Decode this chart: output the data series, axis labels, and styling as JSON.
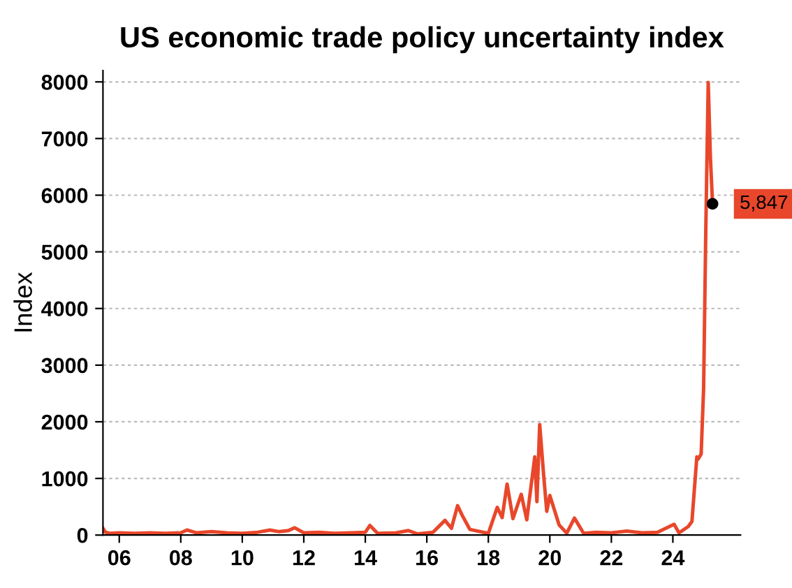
{
  "chart_data": {
    "type": "line",
    "title": "US economic trade policy uncertainty index",
    "ylabel": "Index",
    "x": [
      2005.47,
      2005.55,
      2005.7,
      2006.0,
      2006.5,
      2007.0,
      2007.5,
      2008.0,
      2008.2,
      2008.5,
      2009.0,
      2009.5,
      2010.0,
      2010.5,
      2010.9,
      2011.2,
      2011.5,
      2011.7,
      2012.0,
      2012.5,
      2013.0,
      2013.5,
      2014.0,
      2014.15,
      2014.4,
      2015.0,
      2015.4,
      2015.7,
      2016.2,
      2016.59,
      2016.8,
      2017.0,
      2017.15,
      2017.4,
      2018.0,
      2018.29,
      2018.45,
      2018.61,
      2018.8,
      2019.07,
      2019.25,
      2019.51,
      2019.58,
      2019.67,
      2019.8,
      2019.9,
      2020.0,
      2020.3,
      2020.55,
      2020.8,
      2021.1,
      2021.5,
      2022.0,
      2022.5,
      2023.0,
      2023.5,
      2024.04,
      2024.2,
      2024.5,
      2024.62,
      2024.78,
      2024.82,
      2024.92,
      2025.0,
      2025.07,
      2025.15,
      2025.22,
      2025.29
    ],
    "series": [
      {
        "color": "#e8472b",
        "values": [
          120,
          50,
          30,
          40,
          30,
          40,
          30,
          40,
          90,
          40,
          60,
          40,
          30,
          50,
          90,
          60,
          80,
          130,
          40,
          50,
          30,
          40,
          50,
          170,
          30,
          40,
          80,
          20,
          50,
          260,
          120,
          520,
          350,
          100,
          30,
          490,
          310,
          900,
          290,
          720,
          270,
          1380,
          590,
          1950,
          1050,
          420,
          700,
          180,
          35,
          300,
          30,
          50,
          40,
          70,
          40,
          50,
          190,
          40,
          150,
          240,
          1380,
          1340,
          1430,
          2590,
          5350,
          7990,
          6680,
          5847
        ]
      }
    ],
    "xlim": [
      2005.47,
      2026.2
    ],
    "xticks": [
      {
        "value": 2006,
        "label": "06"
      },
      {
        "value": 2008,
        "label": "08"
      },
      {
        "value": 2010,
        "label": "10"
      },
      {
        "value": 2012,
        "label": "12"
      },
      {
        "value": 2014,
        "label": "14"
      },
      {
        "value": 2016,
        "label": "16"
      },
      {
        "value": 2018,
        "label": "18"
      },
      {
        "value": 2020,
        "label": "20"
      },
      {
        "value": 2022,
        "label": "22"
      },
      {
        "value": 2024,
        "label": "24"
      }
    ],
    "ylim": [
      0,
      8200
    ],
    "yticks": [
      0,
      1000,
      2000,
      3000,
      4000,
      5000,
      6000,
      7000,
      8000
    ],
    "grid": "y",
    "line_style": "solid",
    "annotations": [
      {
        "text": "5,847",
        "x": 2025.29,
        "y": 5847
      }
    ]
  }
}
